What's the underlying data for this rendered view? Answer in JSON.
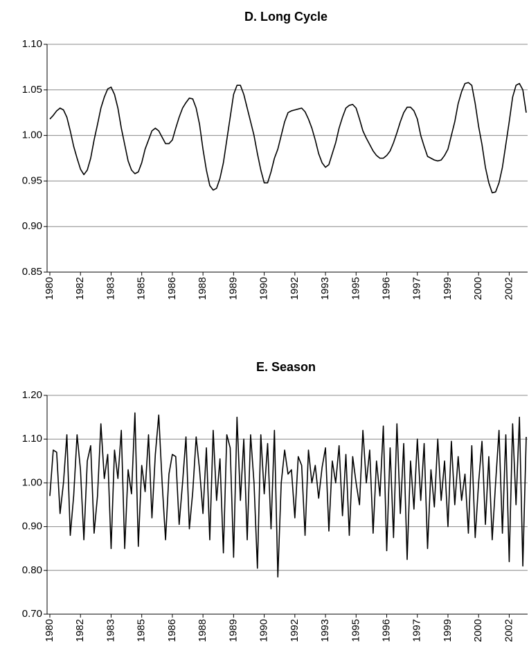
{
  "chart_data": [
    {
      "type": "line",
      "title": "D. Long Cycle",
      "categories": [
        "1980",
        null,
        null,
        null,
        null,
        null,
        null,
        null,
        null,
        "1982",
        null,
        null,
        null,
        null,
        null,
        null,
        null,
        null,
        "1983",
        null,
        null,
        null,
        null,
        null,
        null,
        null,
        null,
        "1985",
        null,
        null,
        null,
        null,
        null,
        null,
        null,
        null,
        "1986",
        null,
        null,
        null,
        null,
        null,
        null,
        null,
        null,
        "1988",
        null,
        null,
        null,
        null,
        null,
        null,
        null,
        null,
        "1989",
        null,
        null,
        null,
        null,
        null,
        null,
        null,
        null,
        "1990",
        null,
        null,
        null,
        null,
        null,
        null,
        null,
        null,
        "1992",
        null,
        null,
        null,
        null,
        null,
        null,
        null,
        null,
        "1993",
        null,
        null,
        null,
        null,
        null,
        null,
        null,
        null,
        "1995",
        null,
        null,
        null,
        null,
        null,
        null,
        null,
        null,
        "1996",
        null,
        null,
        null,
        null,
        null,
        null,
        null,
        null,
        "1997",
        null,
        null,
        null,
        null,
        null,
        null,
        null,
        null,
        "1999",
        null,
        null,
        null,
        null,
        null,
        null,
        null,
        null,
        "2000",
        null,
        null,
        null,
        null,
        null,
        null,
        null,
        null,
        "2002",
        null,
        null,
        null,
        null,
        null
      ],
      "values": [
        1.018,
        1.022,
        1.027,
        1.03,
        1.028,
        1.02,
        1.005,
        0.988,
        0.975,
        0.963,
        0.957,
        0.962,
        0.975,
        0.995,
        1.012,
        1.03,
        1.042,
        1.051,
        1.053,
        1.045,
        1.03,
        1.008,
        0.99,
        0.972,
        0.962,
        0.958,
        0.96,
        0.97,
        0.985,
        0.995,
        1.005,
        1.008,
        1.005,
        0.998,
        0.991,
        0.991,
        0.995,
        1.008,
        1.02,
        1.03,
        1.036,
        1.041,
        1.04,
        1.03,
        1.012,
        0.985,
        0.962,
        0.945,
        0.94,
        0.942,
        0.953,
        0.97,
        0.995,
        1.02,
        1.045,
        1.055,
        1.055,
        1.045,
        1.03,
        1.015,
        1.0,
        0.98,
        0.962,
        0.948,
        0.948,
        0.96,
        0.975,
        0.985,
        1.0,
        1.015,
        1.025,
        1.027,
        1.028,
        1.029,
        1.03,
        1.026,
        1.018,
        1.008,
        0.995,
        0.98,
        0.97,
        0.965,
        0.968,
        0.98,
        0.992,
        1.008,
        1.02,
        1.03,
        1.033,
        1.034,
        1.03,
        1.018,
        1.005,
        0.997,
        0.99,
        0.983,
        0.978,
        0.975,
        0.975,
        0.978,
        0.983,
        0.992,
        1.003,
        1.015,
        1.025,
        1.031,
        1.031,
        1.027,
        1.018,
        1.0,
        0.988,
        0.977,
        0.975,
        0.973,
        0.972,
        0.973,
        0.978,
        0.985,
        1.0,
        1.015,
        1.035,
        1.048,
        1.057,
        1.058,
        1.055,
        1.035,
        1.01,
        0.99,
        0.965,
        0.948,
        0.937,
        0.938,
        0.948,
        0.965,
        0.99,
        1.015,
        1.042,
        1.055,
        1.057,
        1.05,
        1.025
      ],
      "color": "#000000",
      "ylim": [
        0.85,
        1.1
      ],
      "yticks": [
        {
          "value": 0.85,
          "label": "0.85"
        },
        {
          "value": 0.9,
          "label": "0.90"
        },
        {
          "value": 0.95,
          "label": "0.95"
        },
        {
          "value": 1.0,
          "label": "1.00"
        },
        {
          "value": 1.05,
          "label": "1.05"
        },
        {
          "value": 1.1,
          "label": "1.10"
        }
      ],
      "grid": true
    },
    {
      "type": "line",
      "title": "E. Season",
      "categories": [
        "1980",
        null,
        null,
        null,
        null,
        null,
        null,
        null,
        null,
        "1982",
        null,
        null,
        null,
        null,
        null,
        null,
        null,
        null,
        "1983",
        null,
        null,
        null,
        null,
        null,
        null,
        null,
        null,
        "1985",
        null,
        null,
        null,
        null,
        null,
        null,
        null,
        null,
        "1986",
        null,
        null,
        null,
        null,
        null,
        null,
        null,
        null,
        "1988",
        null,
        null,
        null,
        null,
        null,
        null,
        null,
        null,
        "1989",
        null,
        null,
        null,
        null,
        null,
        null,
        null,
        null,
        "1990",
        null,
        null,
        null,
        null,
        null,
        null,
        null,
        null,
        "1992",
        null,
        null,
        null,
        null,
        null,
        null,
        null,
        null,
        "1993",
        null,
        null,
        null,
        null,
        null,
        null,
        null,
        null,
        "1995",
        null,
        null,
        null,
        null,
        null,
        null,
        null,
        null,
        "1996",
        null,
        null,
        null,
        null,
        null,
        null,
        null,
        null,
        "1997",
        null,
        null,
        null,
        null,
        null,
        null,
        null,
        null,
        "1999",
        null,
        null,
        null,
        null,
        null,
        null,
        null,
        null,
        "2000",
        null,
        null,
        null,
        null,
        null,
        null,
        null,
        null,
        "2002",
        null,
        null,
        null,
        null,
        null
      ],
      "values": [
        0.97,
        1.075,
        1.07,
        0.93,
        1.0,
        1.11,
        0.88,
        0.97,
        1.11,
        1.03,
        0.87,
        1.05,
        1.085,
        0.885,
        0.97,
        1.135,
        1.01,
        1.065,
        0.85,
        1.075,
        1.01,
        1.12,
        0.85,
        1.03,
        0.975,
        1.16,
        0.855,
        1.04,
        0.98,
        1.11,
        0.92,
        1.065,
        1.155,
        1.0,
        0.87,
        1.02,
        1.065,
        1.06,
        0.905,
        1.0,
        1.105,
        0.895,
        0.98,
        1.105,
        1.03,
        0.93,
        1.08,
        0.87,
        1.12,
        0.96,
        1.055,
        0.84,
        1.11,
        1.08,
        0.83,
        1.15,
        0.96,
        1.1,
        0.87,
        1.11,
        1.0,
        0.805,
        1.11,
        0.975,
        1.09,
        0.895,
        1.12,
        0.785,
        1.0,
        1.075,
        1.02,
        1.03,
        0.92,
        1.06,
        1.04,
        0.88,
        1.075,
        1.0,
        1.04,
        0.965,
        1.035,
        1.08,
        0.89,
        1.05,
        1.0,
        1.085,
        0.925,
        1.065,
        0.88,
        1.06,
        1.0,
        0.95,
        1.12,
        1.0,
        1.075,
        0.885,
        1.05,
        0.97,
        1.13,
        0.845,
        1.08,
        0.875,
        1.135,
        0.93,
        1.09,
        0.825,
        1.05,
        0.94,
        1.1,
        0.96,
        1.09,
        0.85,
        1.03,
        0.945,
        1.1,
        0.96,
        1.05,
        0.9,
        1.095,
        0.95,
        1.06,
        0.96,
        1.02,
        0.885,
        1.085,
        0.875,
        1.0,
        1.095,
        0.905,
        1.06,
        0.87,
        1.0,
        1.12,
        0.885,
        1.11,
        0.82,
        1.135,
        0.95,
        1.15,
        0.81,
        1.105
      ],
      "color": "#000000",
      "ylim": [
        0.7,
        1.2
      ],
      "yticks": [
        {
          "value": 0.7,
          "label": "0.70"
        },
        {
          "value": 0.8,
          "label": "0.80"
        },
        {
          "value": 0.9,
          "label": "0.90"
        },
        {
          "value": 1.0,
          "label": "1.00"
        },
        {
          "value": 1.1,
          "label": "1.10"
        },
        {
          "value": 1.2,
          "label": "1.20"
        }
      ],
      "grid": true
    }
  ]
}
